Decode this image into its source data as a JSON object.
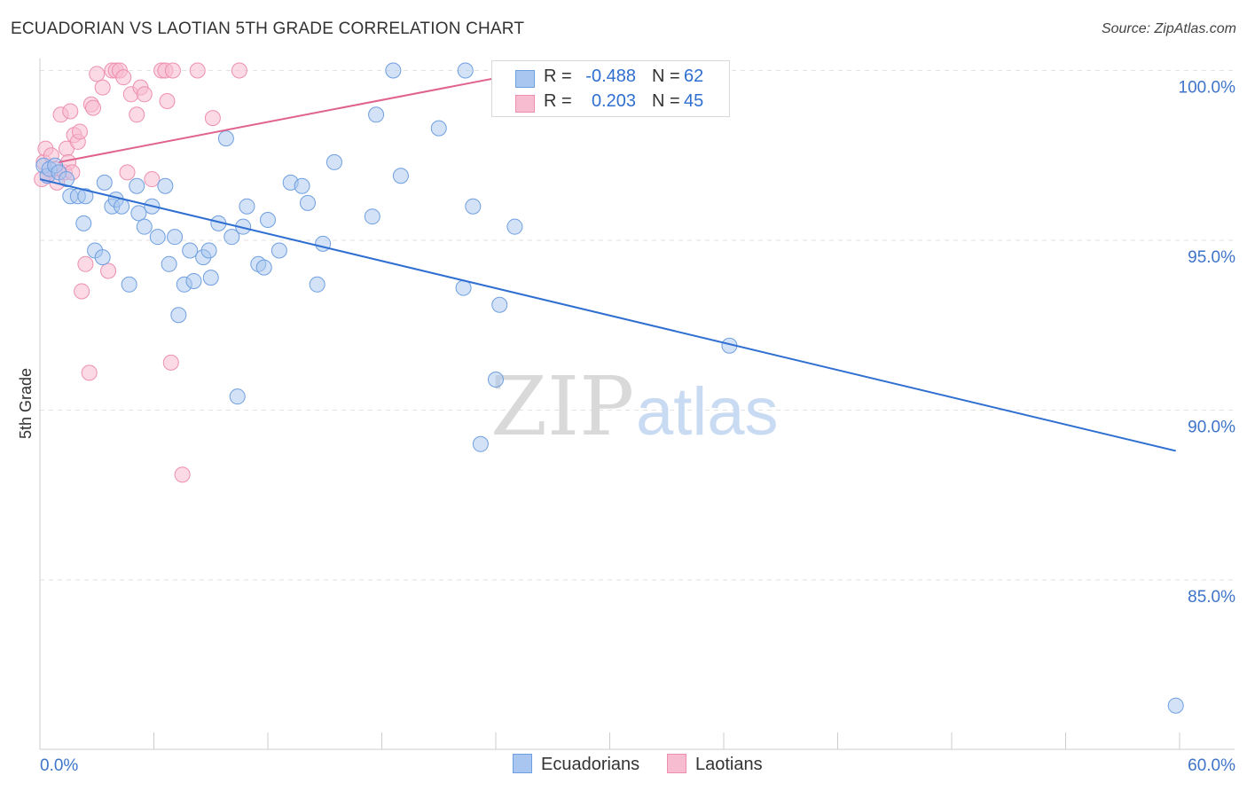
{
  "title": "ECUADORIAN VS LAOTIAN 5TH GRADE CORRELATION CHART",
  "source": "Source: ZipAtlas.com",
  "watermark": {
    "zip": "ZIP",
    "atlas": "atlas"
  },
  "legend": {
    "rows": [
      {
        "r_label": "R =",
        "r_value": "-0.488",
        "n_label": "N =",
        "n_value": "62"
      },
      {
        "r_label": "R =",
        "r_value": "0.203",
        "n_label": "N =",
        "n_value": "45"
      }
    ]
  },
  "bottom_legend": {
    "series1": "Ecuadorians",
    "series2": "Laotians"
  },
  "colors": {
    "blue_fill": "#a8c6f0",
    "blue_stroke": "#6f9fe0",
    "blue_line": "#2f6fd1",
    "pink_fill": "#f7bcd0",
    "pink_stroke": "#ee8fb0",
    "pink_line": "#e0628f",
    "tick_text": "#3e74c9",
    "grid": "#e2e2e2"
  },
  "chart_data": {
    "type": "scatter",
    "title": "ECUADORIAN VS LAOTIAN 5TH GRADE CORRELATION CHART",
    "xlabel": "",
    "ylabel": "5th Grade",
    "xlim": [
      0,
      60
    ],
    "ylim": [
      80.6,
      100.3
    ],
    "x_tick_labels": [
      "0.0%",
      "60.0%"
    ],
    "y_ticks": [
      85,
      90,
      95,
      100
    ],
    "y_tick_labels": [
      "85.0%",
      "90.0%",
      "95.0%",
      "100.0%"
    ],
    "grid": true,
    "legend_position": "top-center",
    "series": [
      {
        "name": "Ecuadorians",
        "color": "#6f9fe0",
        "trend": {
          "x": [
            0,
            59.8
          ],
          "y": [
            96.8,
            88.8
          ]
        },
        "points": [
          [
            0.2,
            97.2
          ],
          [
            0.4,
            96.9
          ],
          [
            0.5,
            97.1
          ],
          [
            0.8,
            97.2
          ],
          [
            1.0,
            97.0
          ],
          [
            1.4,
            96.8
          ],
          [
            1.6,
            96.3
          ],
          [
            2.0,
            96.3
          ],
          [
            2.4,
            96.3
          ],
          [
            2.3,
            95.5
          ],
          [
            2.9,
            94.7
          ],
          [
            3.3,
            94.5
          ],
          [
            3.4,
            96.7
          ],
          [
            3.8,
            96.0
          ],
          [
            4.0,
            96.2
          ],
          [
            4.3,
            96.0
          ],
          [
            4.7,
            93.7
          ],
          [
            5.1,
            96.6
          ],
          [
            5.2,
            95.8
          ],
          [
            5.5,
            95.4
          ],
          [
            5.9,
            96.0
          ],
          [
            6.2,
            95.1
          ],
          [
            6.6,
            96.6
          ],
          [
            6.8,
            94.3
          ],
          [
            7.1,
            95.1
          ],
          [
            7.3,
            92.8
          ],
          [
            7.6,
            93.7
          ],
          [
            7.9,
            94.7
          ],
          [
            8.1,
            93.8
          ],
          [
            8.6,
            94.5
          ],
          [
            8.9,
            94.7
          ],
          [
            9.0,
            93.9
          ],
          [
            9.4,
            95.5
          ],
          [
            9.8,
            98.0
          ],
          [
            10.1,
            95.1
          ],
          [
            10.4,
            90.4
          ],
          [
            10.7,
            95.4
          ],
          [
            10.9,
            96.0
          ],
          [
            11.5,
            94.3
          ],
          [
            11.8,
            94.2
          ],
          [
            12.0,
            95.6
          ],
          [
            12.6,
            94.7
          ],
          [
            13.2,
            96.7
          ],
          [
            13.8,
            96.6
          ],
          [
            14.1,
            96.1
          ],
          [
            14.6,
            93.7
          ],
          [
            14.9,
            94.9
          ],
          [
            15.5,
            97.3
          ],
          [
            17.5,
            95.7
          ],
          [
            17.7,
            98.7
          ],
          [
            18.6,
            100.0
          ],
          [
            19.0,
            96.9
          ],
          [
            21.0,
            98.3
          ],
          [
            22.3,
            93.6
          ],
          [
            22.4,
            100.0
          ],
          [
            22.8,
            96.0
          ],
          [
            23.2,
            89.0
          ],
          [
            24.0,
            90.9
          ],
          [
            24.2,
            93.1
          ],
          [
            25.0,
            95.4
          ],
          [
            36.3,
            91.9
          ],
          [
            59.8,
            81.3
          ]
        ]
      },
      {
        "name": "Laotians",
        "color": "#ee8fb0",
        "trend": {
          "x": [
            1.0,
            27.0
          ],
          "y": [
            97.3,
            100.1
          ]
        },
        "points": [
          [
            0.1,
            96.8
          ],
          [
            0.2,
            97.3
          ],
          [
            0.3,
            97.7
          ],
          [
            0.4,
            96.9
          ],
          [
            0.6,
            97.5
          ],
          [
            0.8,
            97.1
          ],
          [
            0.9,
            96.7
          ],
          [
            1.1,
            98.7
          ],
          [
            1.3,
            97.0
          ],
          [
            1.4,
            97.7
          ],
          [
            1.5,
            97.3
          ],
          [
            1.6,
            98.8
          ],
          [
            1.7,
            97.0
          ],
          [
            1.8,
            98.1
          ],
          [
            2.0,
            97.9
          ],
          [
            2.1,
            98.2
          ],
          [
            2.2,
            93.5
          ],
          [
            2.4,
            94.3
          ],
          [
            2.6,
            91.1
          ],
          [
            2.7,
            99.0
          ],
          [
            2.8,
            98.9
          ],
          [
            3.0,
            99.9
          ],
          [
            3.3,
            99.5
          ],
          [
            3.6,
            94.1
          ],
          [
            3.8,
            100.0
          ],
          [
            4.0,
            100.0
          ],
          [
            4.2,
            100.0
          ],
          [
            4.4,
            99.8
          ],
          [
            4.6,
            97.0
          ],
          [
            4.8,
            99.3
          ],
          [
            5.1,
            98.7
          ],
          [
            5.3,
            99.5
          ],
          [
            5.5,
            99.3
          ],
          [
            5.9,
            96.8
          ],
          [
            6.4,
            100.0
          ],
          [
            6.6,
            100.0
          ],
          [
            6.7,
            99.1
          ],
          [
            6.9,
            91.4
          ],
          [
            7.0,
            100.0
          ],
          [
            7.5,
            88.1
          ],
          [
            8.3,
            100.0
          ],
          [
            9.1,
            98.6
          ],
          [
            10.5,
            100.0
          ],
          [
            24.8,
            100.0
          ],
          [
            26.5,
            99.9
          ]
        ]
      }
    ]
  }
}
